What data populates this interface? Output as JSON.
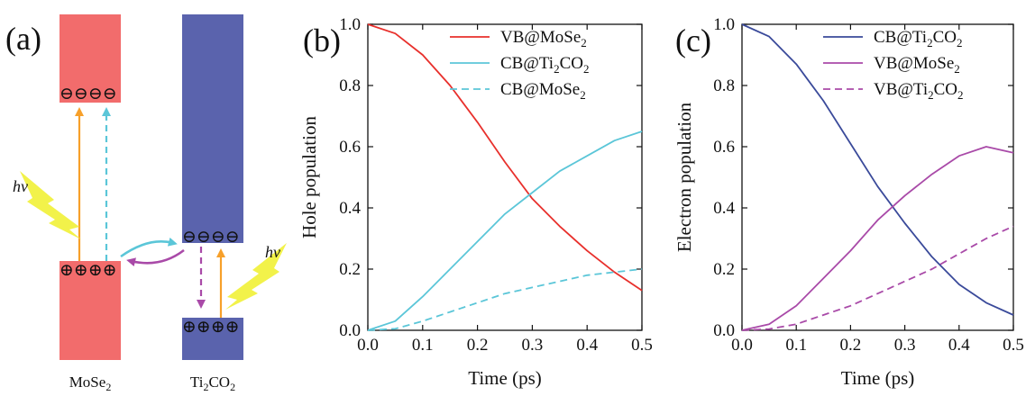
{
  "panels": {
    "a": {
      "label": "(a)",
      "left_name_main": "MoSe",
      "left_name_sub": "2",
      "right_name_main": "Ti",
      "right_name_sub1": "2",
      "right_name_mid": "CO",
      "right_name_sub2": "2",
      "hv": "hv",
      "electrons": "⊖⊖⊖⊖",
      "holes": "⊕⊕⊕⊕",
      "colors": {
        "mose2": "#f26c6c",
        "ti2co2": "#5a63ad",
        "orange": "#f7a02a",
        "cyan": "#5bc6d8",
        "magenta": "#a94aa8",
        "flash": "#f2f24a"
      }
    }
  },
  "chart_data": [
    {
      "type": "line",
      "panel_label": "(b)",
      "xlabel": "Time (ps)",
      "ylabel": "Hole population",
      "xlim": [
        0,
        0.5
      ],
      "ylim": [
        0,
        1.0
      ],
      "xticks": [
        "0.0",
        "0.1",
        "0.2",
        "0.3",
        "0.4",
        "0.5"
      ],
      "yticks": [
        "0.0",
        "0.2",
        "0.4",
        "0.6",
        "0.8",
        "1.0"
      ],
      "legend_position": "top-right",
      "series": [
        {
          "name": "VB@MoSe",
          "sub": "2",
          "color": "#e8302c",
          "dash": "solid",
          "x": [
            0,
            0.05,
            0.1,
            0.15,
            0.2,
            0.25,
            0.3,
            0.35,
            0.4,
            0.45,
            0.5
          ],
          "y": [
            1.0,
            0.97,
            0.9,
            0.8,
            0.68,
            0.55,
            0.43,
            0.34,
            0.26,
            0.19,
            0.13
          ]
        },
        {
          "name": "CB@Ti",
          "sub": "2",
          "name2": "CO",
          "sub2": "2",
          "color": "#5bc6d8",
          "dash": "solid",
          "x": [
            0,
            0.05,
            0.1,
            0.15,
            0.2,
            0.25,
            0.3,
            0.35,
            0.4,
            0.45,
            0.5
          ],
          "y": [
            0.0,
            0.03,
            0.11,
            0.2,
            0.29,
            0.38,
            0.45,
            0.52,
            0.57,
            0.62,
            0.65
          ]
        },
        {
          "name": "CB@MoSe",
          "sub": "2",
          "color": "#5bc6d8",
          "dash": "dashed",
          "x": [
            0,
            0.05,
            0.1,
            0.15,
            0.2,
            0.25,
            0.3,
            0.35,
            0.4,
            0.45,
            0.5
          ],
          "y": [
            0.0,
            0.005,
            0.03,
            0.06,
            0.09,
            0.12,
            0.14,
            0.16,
            0.18,
            0.19,
            0.2
          ]
        }
      ]
    },
    {
      "type": "line",
      "panel_label": "(c)",
      "xlabel": "Time (ps)",
      "ylabel": "Electron population",
      "xlim": [
        0,
        0.5
      ],
      "ylim": [
        0,
        1.0
      ],
      "xticks": [
        "0.0",
        "0.1",
        "0.2",
        "0.3",
        "0.4",
        "0.5"
      ],
      "yticks": [
        "0.0",
        "0.2",
        "0.4",
        "0.6",
        "0.8",
        "1.0"
      ],
      "legend_position": "top-right",
      "series": [
        {
          "name": "CB@Ti",
          "sub": "2",
          "name2": "CO",
          "sub2": "2",
          "color": "#3a4a9a",
          "dash": "solid",
          "x": [
            0,
            0.05,
            0.1,
            0.15,
            0.2,
            0.25,
            0.3,
            0.35,
            0.4,
            0.45,
            0.5
          ],
          "y": [
            1.0,
            0.96,
            0.87,
            0.75,
            0.61,
            0.47,
            0.35,
            0.24,
            0.15,
            0.09,
            0.05
          ]
        },
        {
          "name": "VB@MoSe",
          "sub": "2",
          "color": "#a94aa8",
          "dash": "solid",
          "x": [
            0,
            0.05,
            0.1,
            0.15,
            0.2,
            0.25,
            0.3,
            0.35,
            0.4,
            0.45,
            0.5
          ],
          "y": [
            0.0,
            0.02,
            0.08,
            0.17,
            0.26,
            0.36,
            0.44,
            0.51,
            0.57,
            0.6,
            0.58
          ]
        },
        {
          "name": "VB@Ti",
          "sub": "2",
          "name2": "CO",
          "sub2": "2",
          "color": "#a94aa8",
          "dash": "dashed",
          "x": [
            0,
            0.05,
            0.1,
            0.15,
            0.2,
            0.25,
            0.3,
            0.35,
            0.4,
            0.45,
            0.5
          ],
          "y": [
            0.0,
            0.004,
            0.02,
            0.05,
            0.08,
            0.12,
            0.16,
            0.2,
            0.25,
            0.3,
            0.34
          ]
        }
      ]
    }
  ]
}
